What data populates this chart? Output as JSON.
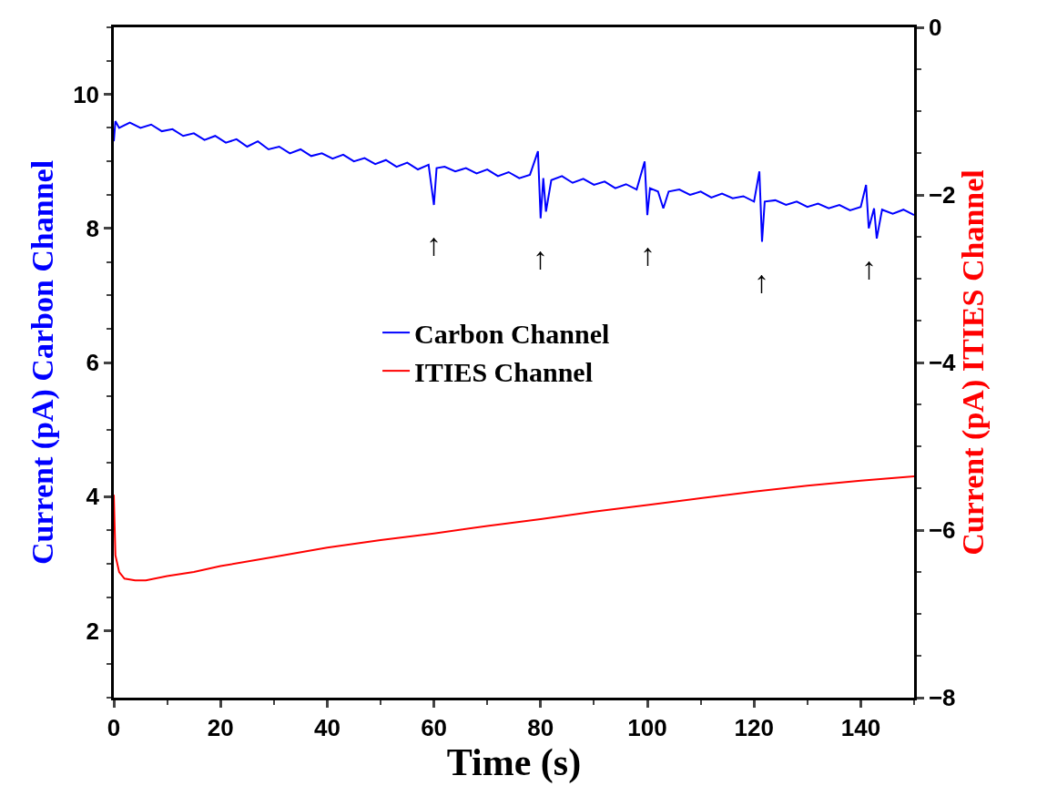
{
  "chart_data": {
    "type": "line",
    "xlabel": "Time (s)",
    "ylabel": "Current (pA) Carbon Channel",
    "y2label": "Current (pA) ITIES Channel",
    "xlim": [
      0,
      150
    ],
    "xticks": [
      0,
      20,
      40,
      60,
      80,
      100,
      120,
      140
    ],
    "ylim": [
      1,
      11
    ],
    "yticks": [
      2,
      4,
      6,
      8,
      10
    ],
    "y2lim": [
      -8,
      0
    ],
    "y2ticks": [
      -8,
      -6,
      -4,
      -2,
      0
    ],
    "legend": "center",
    "marker": "none",
    "line_style": "solid",
    "annotations": [
      {
        "text": "↑",
        "x": 60,
        "y": 8.35
      },
      {
        "text": "↑",
        "x": 80,
        "y": 8.15
      },
      {
        "text": "↑",
        "x": 100,
        "y": 8.2
      },
      {
        "text": "↑",
        "x": 121.5,
        "y": 7.8
      },
      {
        "text": "↑",
        "x": 141.5,
        "y": 8.0
      }
    ],
    "series": [
      {
        "name": "Carbon Channel",
        "color": "#0000ff",
        "x": [
          0,
          0.3,
          1,
          3,
          5,
          7,
          9,
          11,
          13,
          15,
          17,
          19,
          21,
          23,
          25,
          27,
          29,
          31,
          33,
          35,
          37,
          39,
          41,
          43,
          45,
          47,
          49,
          51,
          53,
          55,
          57,
          59,
          60,
          60.5,
          62,
          64,
          66,
          68,
          70,
          72,
          74,
          76,
          78,
          79.5,
          80,
          80.5,
          81,
          82,
          84,
          86,
          88,
          90,
          92,
          94,
          96,
          98,
          99.5,
          100,
          100.5,
          102,
          103,
          104,
          106,
          108,
          110,
          112,
          114,
          116,
          118,
          120,
          121,
          121.5,
          122,
          124,
          126,
          128,
          130,
          132,
          134,
          136,
          138,
          140,
          141,
          141.5,
          142.5,
          143,
          144,
          146,
          148,
          150
        ],
        "values": [
          9.3,
          9.6,
          9.5,
          9.58,
          9.5,
          9.55,
          9.45,
          9.48,
          9.38,
          9.42,
          9.32,
          9.38,
          9.28,
          9.33,
          9.22,
          9.3,
          9.18,
          9.22,
          9.12,
          9.18,
          9.08,
          9.12,
          9.04,
          9.1,
          9.0,
          9.05,
          8.96,
          9.02,
          8.92,
          8.98,
          8.88,
          8.95,
          8.35,
          8.9,
          8.92,
          8.85,
          8.9,
          8.82,
          8.88,
          8.78,
          8.84,
          8.75,
          8.8,
          9.15,
          8.15,
          8.75,
          8.25,
          8.72,
          8.78,
          8.68,
          8.74,
          8.65,
          8.7,
          8.6,
          8.66,
          8.58,
          9.0,
          8.2,
          8.6,
          8.55,
          8.3,
          8.55,
          8.58,
          8.5,
          8.55,
          8.46,
          8.52,
          8.45,
          8.48,
          8.4,
          8.85,
          7.8,
          8.4,
          8.42,
          8.35,
          8.4,
          8.32,
          8.37,
          8.3,
          8.35,
          8.27,
          8.32,
          8.65,
          8.0,
          8.3,
          7.85,
          8.28,
          8.22,
          8.28,
          8.2
        ]
      },
      {
        "name": "ITIES Channel",
        "color": "#ff0000",
        "axis": "y2",
        "x": [
          0,
          0.3,
          1,
          2,
          4,
          6,
          10,
          15,
          20,
          30,
          40,
          50,
          60,
          70,
          80,
          90,
          100,
          110,
          120,
          130,
          140,
          150
        ],
        "values": [
          -5.58,
          -6.3,
          -6.5,
          -6.58,
          -6.6,
          -6.6,
          -6.55,
          -6.5,
          -6.43,
          -6.32,
          -6.21,
          -6.12,
          -6.04,
          -5.95,
          -5.87,
          -5.78,
          -5.7,
          -5.62,
          -5.54,
          -5.47,
          -5.41,
          -5.36
        ]
      }
    ]
  }
}
